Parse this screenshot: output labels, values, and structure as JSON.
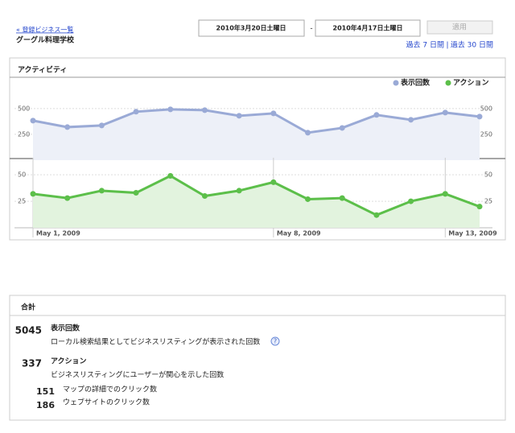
{
  "header": {
    "back_link": "« 登録ビジネス一覧",
    "business_name": "グーグル料理学校"
  },
  "date_range": {
    "start": "2010年3月20日土曜日",
    "separator": "-",
    "end": "2010年4月17日土曜日",
    "apply_button": "適用"
  },
  "quick_links": {
    "items": [
      "過去 7 日間",
      "過去 30 日間"
    ],
    "separator": "|"
  },
  "activity": {
    "title": "アクティビティ"
  },
  "chart_data": [
    {
      "type": "line",
      "series": [
        {
          "name": "表示回数",
          "color": "#9aaad6",
          "values": [
            383,
            320,
            336,
            469,
            492,
            484,
            430,
            453,
            266,
            312,
            438,
            391,
            461,
            422
          ]
        }
      ],
      "ylim": [
        0,
        600
      ],
      "yticks": [
        250,
        500
      ],
      "grid": true
    },
    {
      "type": "line",
      "categories": [
        "May 1, 2009",
        null,
        null,
        null,
        null,
        null,
        null,
        "May 8, 2009",
        null,
        null,
        null,
        null,
        "May 13, 2009",
        null
      ],
      "series": [
        {
          "name": "アクション",
          "color": "#5cbf4a",
          "values": [
            32,
            28,
            35,
            33,
            49,
            30,
            35,
            43,
            27,
            28,
            12,
            25,
            32,
            20
          ]
        }
      ],
      "ylim": [
        0,
        60
      ],
      "yticks": [
        25,
        50
      ],
      "grid": true
    }
  ],
  "totals": {
    "title": "合計",
    "help_icon": "?",
    "items": [
      {
        "value": "5045",
        "label": "表示回数",
        "description": "ローカル検索結果としてビジネスリスティングが表示された回数"
      },
      {
        "value": "337",
        "label": "アクション",
        "description": "ビジネスリスティングにユーザーが関心を示した回数"
      },
      {
        "value": "151",
        "label": "マップの詳細でのクリック数"
      },
      {
        "value": "186",
        "label": "ウェブサイトのクリック数"
      }
    ]
  }
}
